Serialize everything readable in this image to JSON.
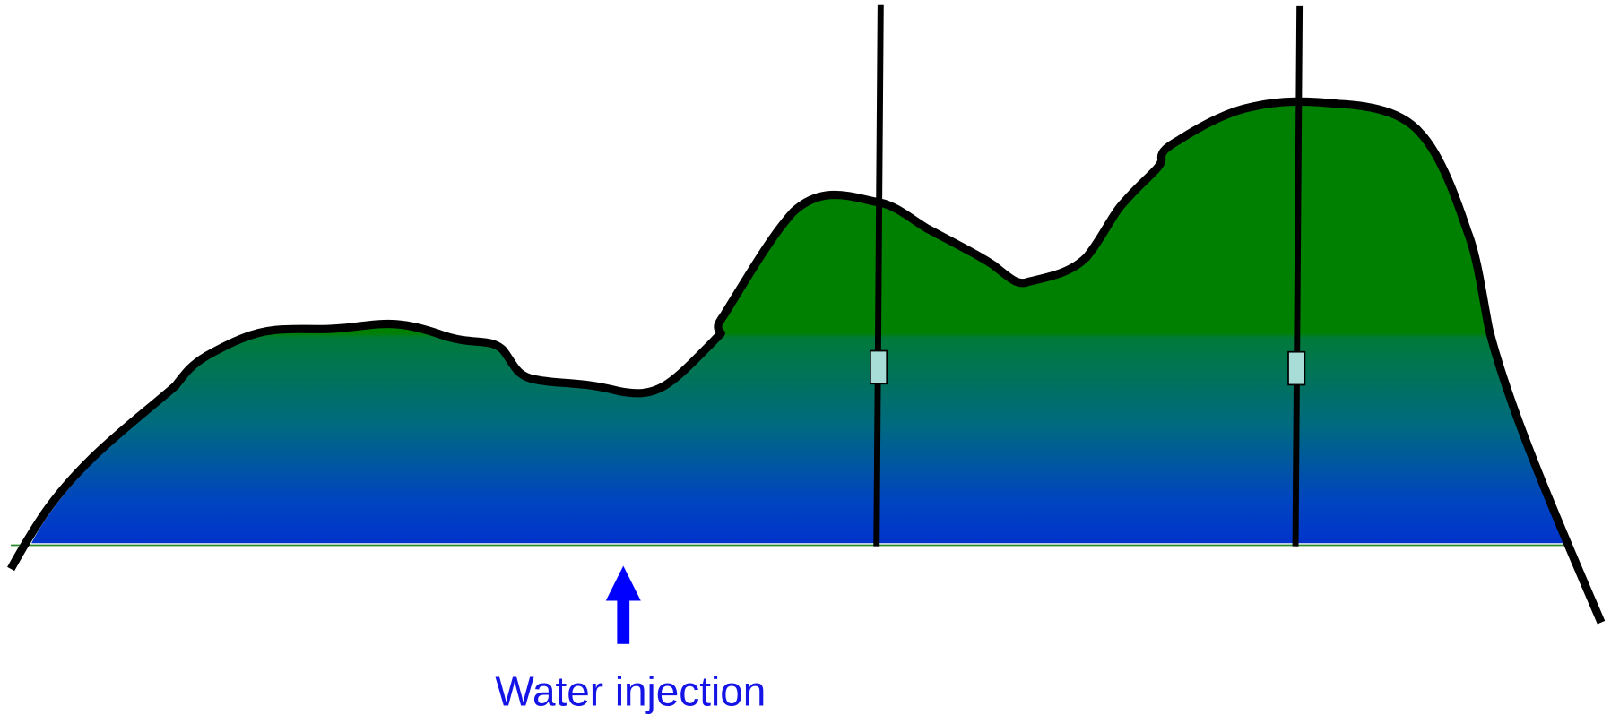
{
  "annotation": {
    "label": "Water injection"
  }
}
